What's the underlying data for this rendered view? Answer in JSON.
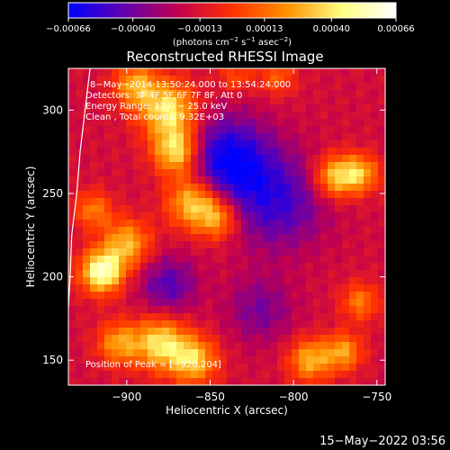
{
  "chart_data": {
    "type": "heatmap",
    "title": "Reconstructed RHESSI Image",
    "xlabel": "Heliocentric X (arcsec)",
    "ylabel": "Heliocentric Y (arcsec)",
    "xlim": [
      -935,
      -745
    ],
    "ylim": [
      135,
      325
    ],
    "x_ticks": [
      -900,
      -850,
      -800,
      -750
    ],
    "x_tick_labels": [
      "−900",
      "−850",
      "−800",
      "−750"
    ],
    "y_ticks": [
      150,
      200,
      250,
      300
    ],
    "y_tick_labels": [
      "150",
      "200",
      "250",
      "300"
    ],
    "colorbar": {
      "min": -0.00066,
      "max": 0.00066,
      "ticks": [
        -0.00066,
        -0.0004,
        -0.00013,
        0.00013,
        0.0004,
        0.00066
      ],
      "tick_labels": [
        "−0.00066",
        "−0.00040",
        "−0.00013",
        "0.00013",
        "0.00040",
        "0.00066"
      ],
      "unit_parts": [
        "(photons cm",
        "−2",
        " s",
        "−1",
        " asec",
        "−2",
        ")"
      ],
      "colors": [
        "#0000ff",
        "#6000b0",
        "#c00050",
        "#ff3000",
        "#ff9000",
        "#ffff80",
        "#ffffff"
      ]
    },
    "annotations": [
      "8−May−2014 13:50:24.000 to 13:54:24.000",
      "Detectors: 3F 4F 5F 6F 7F 8F, Att 0",
      "Energy Range: 12.0 − 25.0 keV",
      "Clean , Total counts: 9.32E+03"
    ],
    "position_note": "Position of Peak = [−920,204]",
    "grid": false,
    "sources": [
      {
        "x": -915,
        "y": 203,
        "amplitude": 0.00072,
        "sigma": 9
      },
      {
        "x": -900,
        "y": 220,
        "amplitude": 0.00045,
        "sigma": 10
      },
      {
        "x": -875,
        "y": 300,
        "amplitude": 0.00058,
        "sigma": 12
      },
      {
        "x": -895,
        "y": 315,
        "amplitude": 0.00042,
        "sigma": 9
      },
      {
        "x": -870,
        "y": 275,
        "amplitude": 0.0006,
        "sigma": 10
      },
      {
        "x": -860,
        "y": 245,
        "amplitude": 0.00055,
        "sigma": 11
      },
      {
        "x": -845,
        "y": 235,
        "amplitude": 0.0004,
        "sigma": 9
      },
      {
        "x": -880,
        "y": 160,
        "amplitude": 0.00055,
        "sigma": 11
      },
      {
        "x": -860,
        "y": 150,
        "amplitude": 0.0005,
        "sigma": 10
      },
      {
        "x": -905,
        "y": 160,
        "amplitude": 0.0004,
        "sigma": 9
      },
      {
        "x": -920,
        "y": 240,
        "amplitude": 0.00032,
        "sigma": 8
      },
      {
        "x": -775,
        "y": 260,
        "amplitude": 0.0005,
        "sigma": 9
      },
      {
        "x": -760,
        "y": 262,
        "amplitude": 0.00042,
        "sigma": 8
      },
      {
        "x": -760,
        "y": 185,
        "amplitude": 0.00032,
        "sigma": 8
      },
      {
        "x": -790,
        "y": 150,
        "amplitude": 0.00045,
        "sigma": 9
      },
      {
        "x": -770,
        "y": 155,
        "amplitude": 0.0004,
        "sigma": 8
      },
      {
        "x": -810,
        "y": 320,
        "amplitude": 0.00025,
        "sigma": 8
      },
      {
        "x": -835,
        "y": 320,
        "amplitude": 0.00022,
        "sigma": 7
      },
      {
        "x": -840,
        "y": 270,
        "amplitude": -0.0005,
        "sigma": 18
      },
      {
        "x": -810,
        "y": 245,
        "amplitude": -0.00035,
        "sigma": 20
      },
      {
        "x": -875,
        "y": 195,
        "amplitude": -0.0003,
        "sigma": 12
      },
      {
        "x": -820,
        "y": 180,
        "amplitude": -0.00022,
        "sigma": 14
      }
    ],
    "limb_curve": [
      [
        -922,
        325
      ],
      [
        -925,
        300
      ],
      [
        -928,
        275
      ],
      [
        -930,
        250
      ],
      [
        -933,
        225
      ],
      [
        -934,
        200
      ],
      [
        -935,
        182
      ]
    ]
  },
  "footer": {
    "timestamp": "15−May−2022 03:56"
  }
}
